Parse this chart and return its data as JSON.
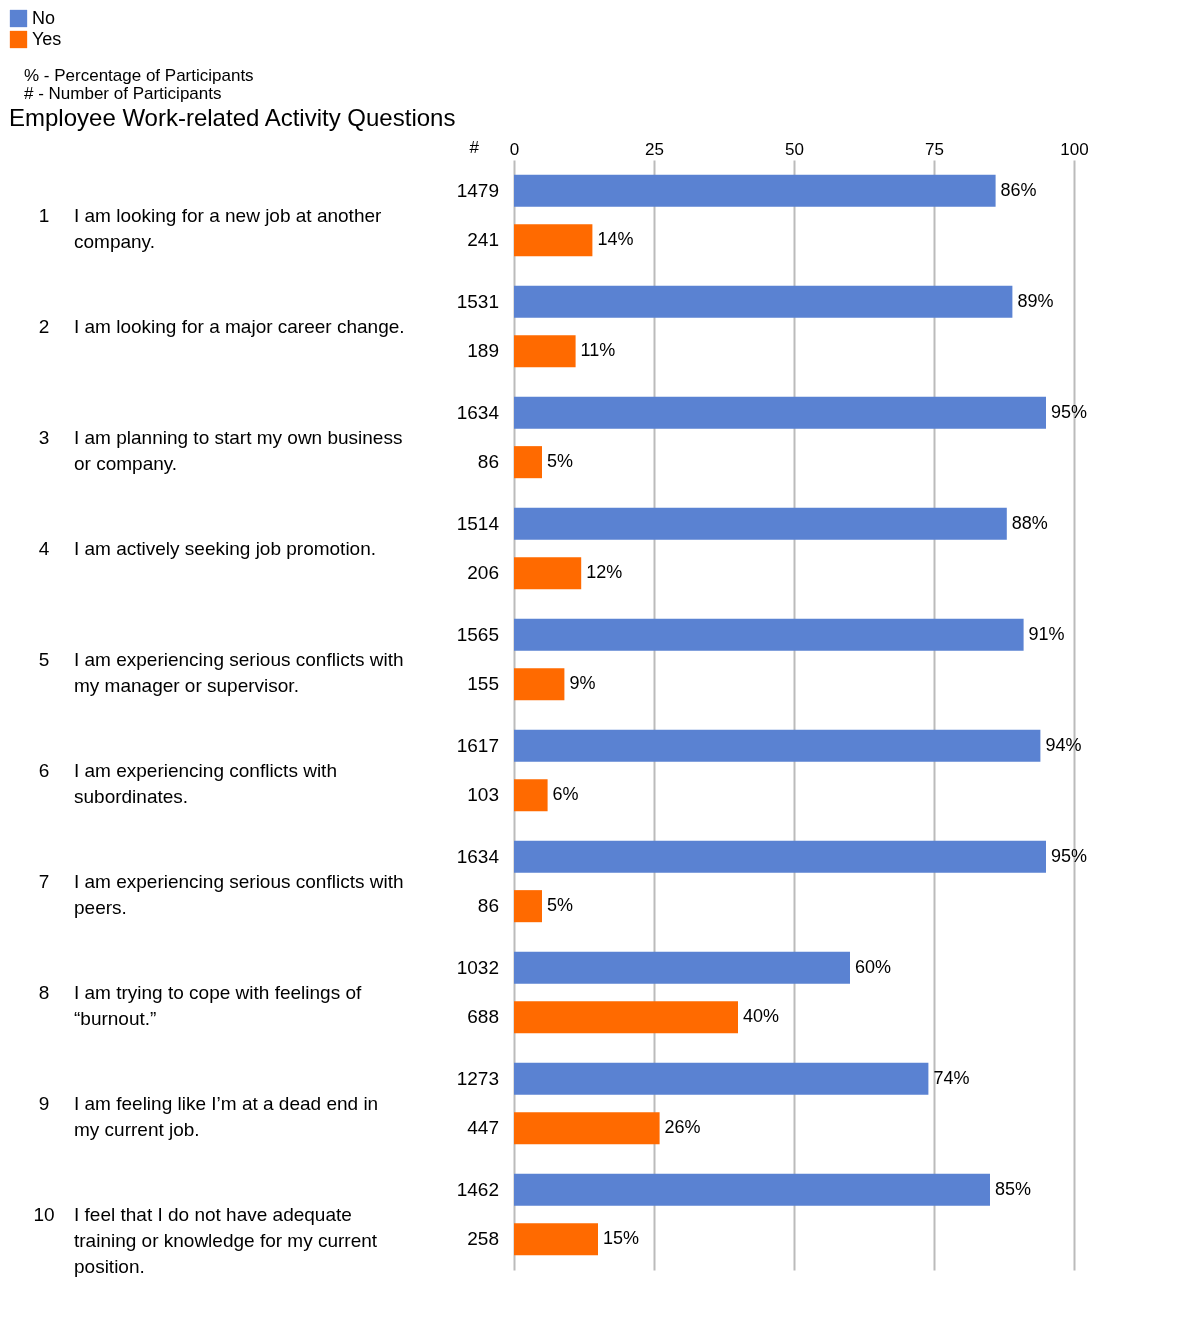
{
  "chart_data": {
    "type": "bar",
    "orientation": "horizontal",
    "title": "Employee Work-related Activity Questions",
    "categories": [
      "1 I am looking for a new job at another company.",
      "2 I am looking for a major career change.",
      "3 I am planning to start my own business or company.",
      "4 I am actively seeking job promotion.",
      "5 I am experiencing serious conflicts with my manager or supervisor.",
      "6 I am experiencing conflicts with subordinates.",
      "7 I am experiencing serious conflicts with peers.",
      "8 I am trying to cope with feelings of “burnout.”",
      "9 I am feeling like I’m at a dead end in my current job.",
      "10 I feel that I do not have adequate training or knowledge for my current position."
    ],
    "series": [
      {
        "name": "No",
        "color": "#5a82d2",
        "values": [
          86,
          89,
          95,
          88,
          91,
          94,
          95,
          60,
          74,
          85
        ],
        "value_labels": [
          "86%",
          "89%",
          "95%",
          "88%",
          "91%",
          "94%",
          "95%",
          "60%",
          "74%",
          "85%"
        ]
      },
      {
        "name": "Yes",
        "color": "#ff6a00",
        "values": [
          14,
          11,
          5,
          12,
          9,
          6,
          5,
          40,
          26,
          15
        ],
        "value_labels": [
          "14%",
          "11%",
          "5%",
          "12%",
          "9%",
          "6%",
          "5%",
          "40%",
          "26%",
          "15%"
        ]
      }
    ],
    "xlim": [
      0,
      100
    ],
    "xticks": [
      0,
      25,
      50,
      75,
      100
    ],
    "grid": "x",
    "legend": "top",
    "annotations": [
      "% - Percentage of Participants",
      "# - Number of Participants",
      "#",
      "1479",
      "241",
      "1531",
      "189",
      "1634",
      "86",
      "1514",
      "206",
      "1565",
      "155",
      "1617",
      "103",
      "1634",
      "86",
      "1032",
      "688",
      "1273",
      "447",
      "1462",
      "258"
    ]
  }
}
